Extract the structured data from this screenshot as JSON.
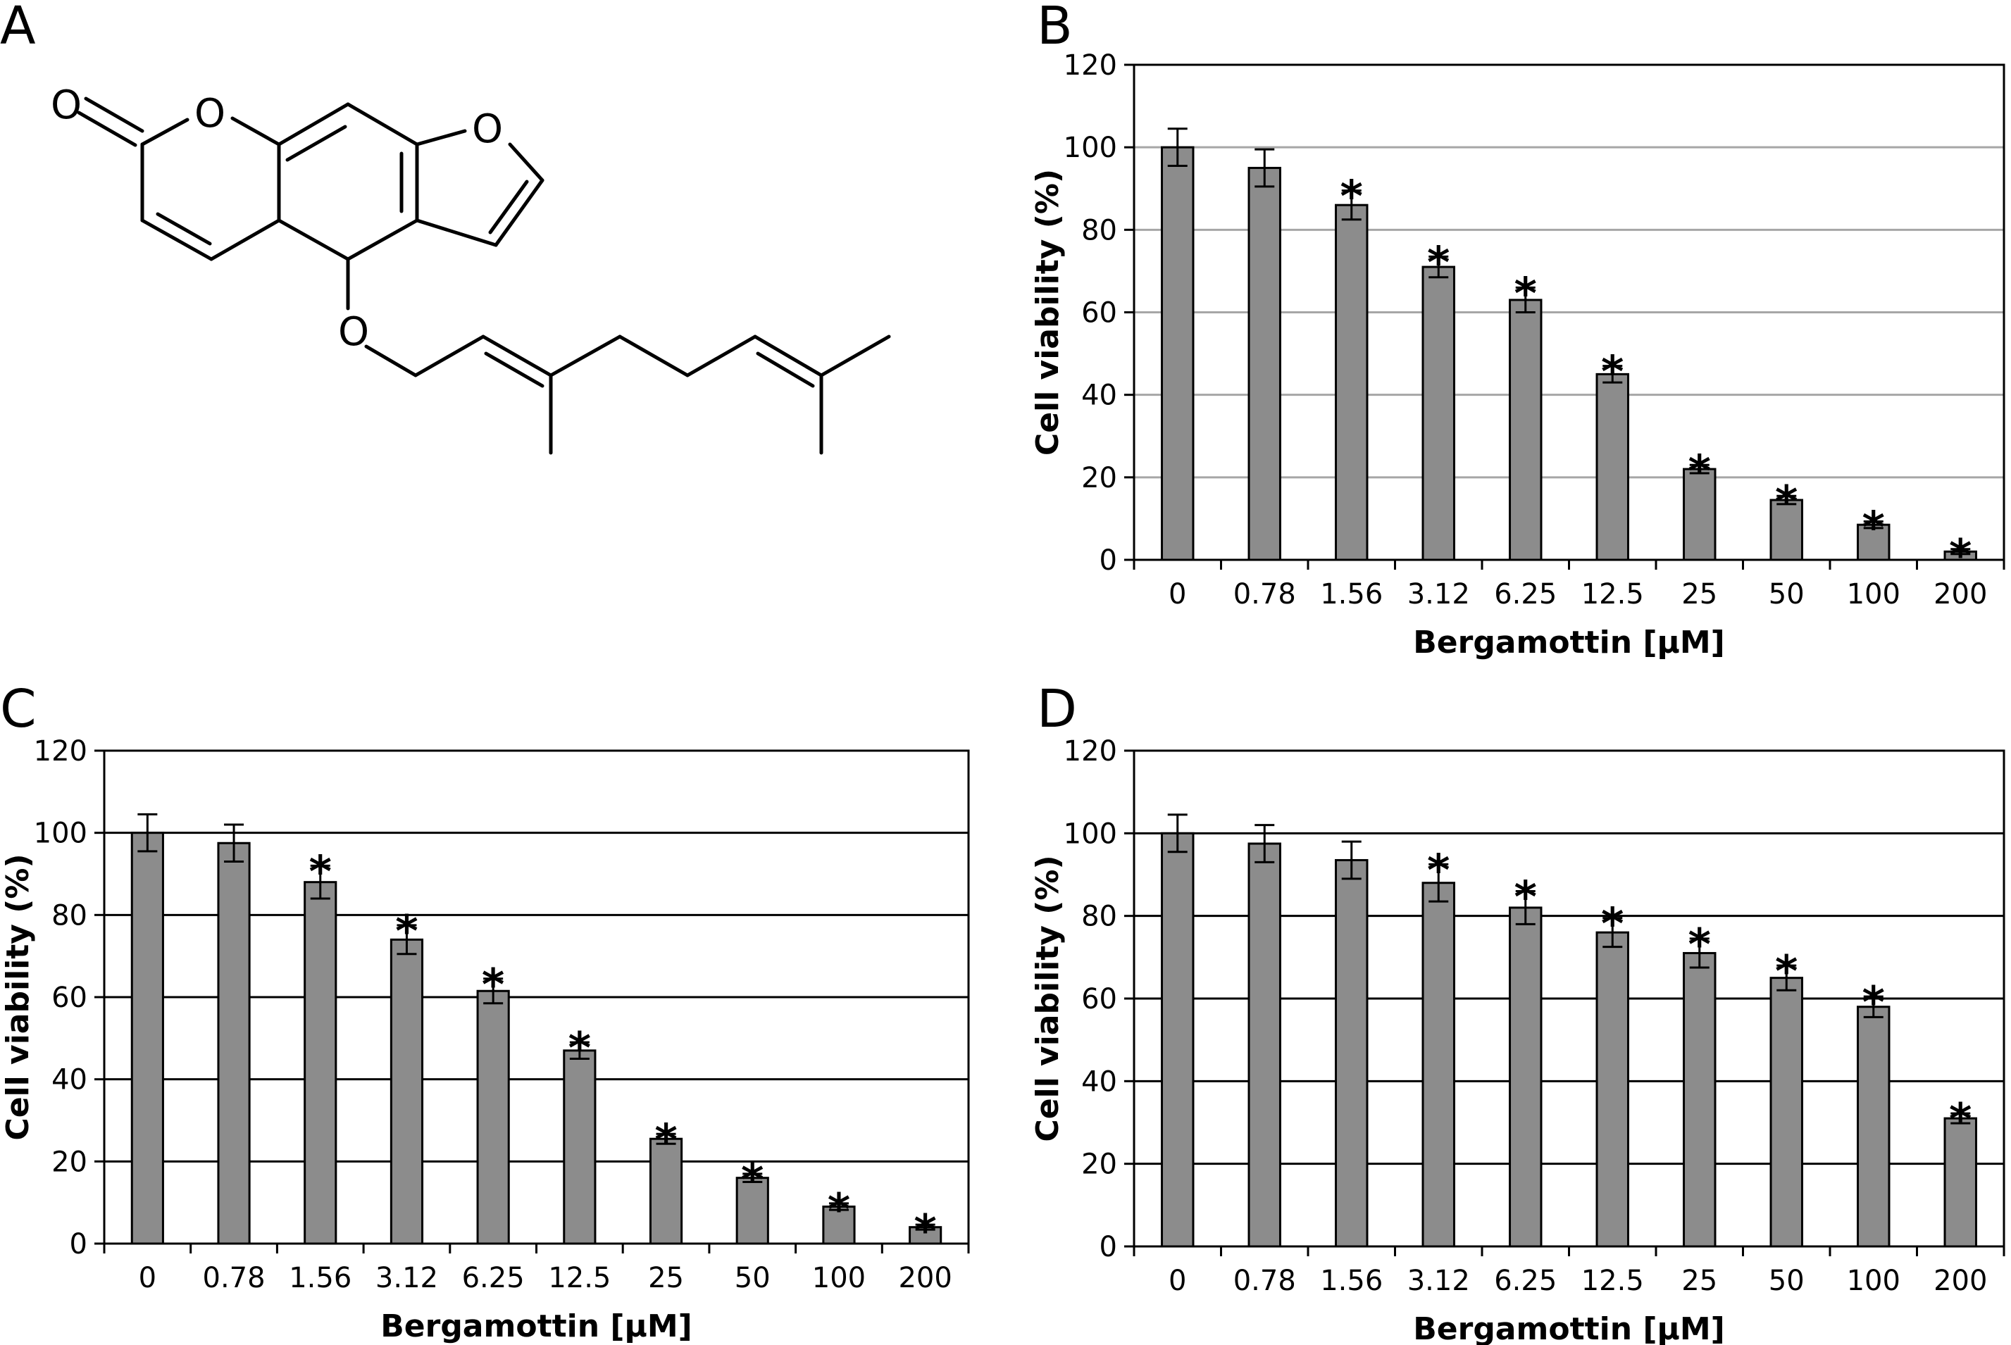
{
  "panels": [
    {
      "id": "A",
      "letter": "A"
    },
    {
      "id": "B",
      "letter": "B"
    },
    {
      "id": "C",
      "letter": "C"
    },
    {
      "id": "D",
      "letter": "D"
    }
  ],
  "molecule": {
    "atoms": [
      "O",
      "O",
      "O",
      "O"
    ],
    "colors": {
      "bond": "#000000"
    }
  },
  "chart_data": [
    {
      "panel": "B",
      "type": "bar",
      "categories": [
        "0",
        "0.78",
        "1.56",
        "3.12",
        "6.25",
        "12.5",
        "25",
        "50",
        "100",
        "200"
      ],
      "values": [
        100,
        95,
        86,
        71,
        63,
        45,
        22,
        14.5,
        8.5,
        2
      ],
      "errors": [
        4.5,
        4.5,
        3.5,
        2.5,
        3,
        2,
        1,
        1,
        0.8,
        0.6
      ],
      "significant": [
        false,
        false,
        true,
        true,
        true,
        true,
        true,
        true,
        true,
        true
      ],
      "marker": "*",
      "xlabel": "Bergamottin [μM]",
      "ylabel": "Cell viability (%)",
      "ylim": [
        0,
        120
      ],
      "yticks": [
        "0",
        "20",
        "40",
        "60",
        "80",
        "100",
        "120"
      ],
      "grid": true,
      "gridColor": "#a6a6a6",
      "barColor": "#8c8c8c"
    },
    {
      "panel": "C",
      "type": "bar",
      "categories": [
        "0",
        "0.78",
        "1.56",
        "3.12",
        "6.25",
        "12.5",
        "25",
        "50",
        "100",
        "200"
      ],
      "values": [
        100,
        97.5,
        88,
        74,
        61.5,
        47,
        25.5,
        16,
        9,
        4
      ],
      "errors": [
        4.5,
        4.5,
        4,
        3.5,
        3,
        2,
        1.2,
        1,
        0.8,
        0.6
      ],
      "significant": [
        false,
        false,
        true,
        true,
        true,
        true,
        true,
        true,
        true,
        true
      ],
      "marker": "*",
      "xlabel": "Bergamottin [μM]",
      "ylabel": "Cell viability (%)",
      "ylim": [
        0,
        120
      ],
      "yticks": [
        "0",
        "20",
        "40",
        "60",
        "80",
        "100",
        "120"
      ],
      "grid": true,
      "gridColor": "#000000",
      "barColor": "#8c8c8c"
    },
    {
      "panel": "D",
      "type": "bar",
      "categories": [
        "0",
        "0.78",
        "1.56",
        "3.12",
        "6.25",
        "12.5",
        "25",
        "50",
        "100",
        "200"
      ],
      "values": [
        100,
        97.5,
        93.5,
        88,
        82,
        76,
        71,
        65,
        58,
        31
      ],
      "errors": [
        4.5,
        4.5,
        4.5,
        4.5,
        4,
        3.5,
        3.5,
        3,
        2.5,
        1.2
      ],
      "significant": [
        false,
        false,
        false,
        true,
        true,
        true,
        true,
        true,
        true,
        true
      ],
      "marker": "*",
      "xlabel": "Bergamottin [μM]",
      "ylabel": "Cell viability (%)",
      "ylim": [
        0,
        120
      ],
      "yticks": [
        "0",
        "20",
        "40",
        "60",
        "80",
        "100",
        "120"
      ],
      "grid": true,
      "gridColor": "#000000",
      "barColor": "#8c8c8c"
    }
  ]
}
